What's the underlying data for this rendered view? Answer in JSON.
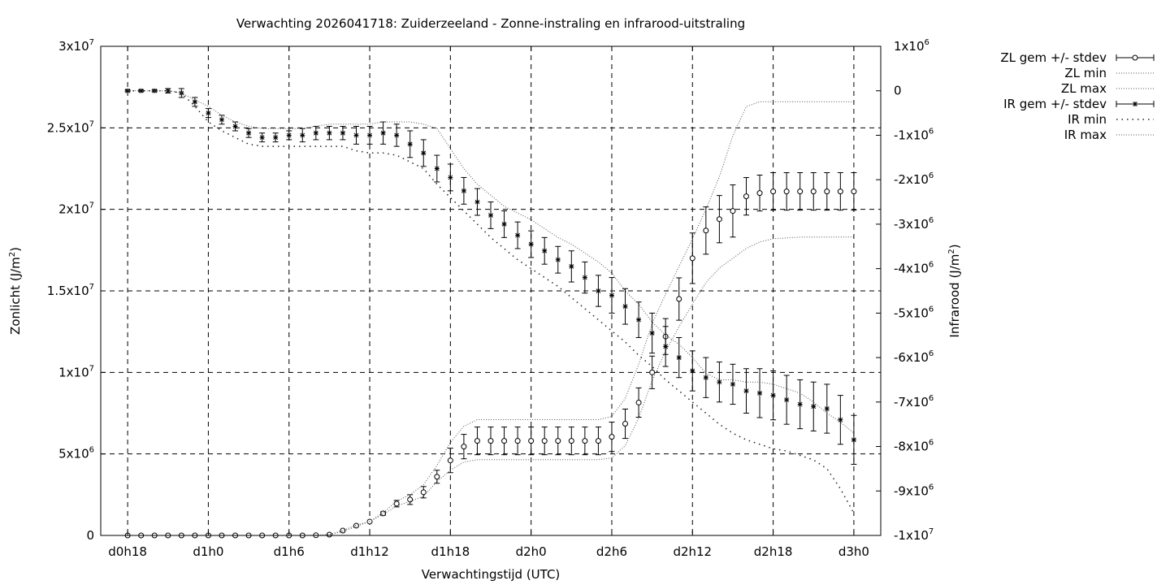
{
  "chart_data": {
    "type": "line",
    "title": "Verwachting 2026041718: Zuiderzeeland - Zonne-instraling en infrarood-uitstraling",
    "xlabel": "Verwachtingstijd (UTC)",
    "ylabel": {
      "base": "Zonlicht (J/m",
      "sup": "2",
      "end": ")"
    },
    "y2label": {
      "base": "Infrarood (J/m",
      "sup": "2",
      "end": ")"
    },
    "grid": true,
    "legend_position": "outside-right",
    "x_tick_labels": [
      "d0h18",
      "d1h0",
      "d1h6",
      "d1h12",
      "d1h18",
      "d2h0",
      "d2h6",
      "d2h12",
      "d2h18",
      "d3h0"
    ],
    "x_ticks_hours": [
      18,
      24,
      30,
      36,
      42,
      48,
      54,
      60,
      66,
      72
    ],
    "xlim_hours": [
      16,
      74
    ],
    "y_left_ticks": [
      {
        "value": 0,
        "base": "0",
        "exp": ""
      },
      {
        "value": 5000000,
        "base": "5x10",
        "exp": "6"
      },
      {
        "value": 10000000,
        "base": "1x10",
        "exp": "7"
      },
      {
        "value": 15000000,
        "base": "1.5x10",
        "exp": "7"
      },
      {
        "value": 20000000,
        "base": "2x10",
        "exp": "7"
      },
      {
        "value": 25000000,
        "base": "2.5x10",
        "exp": "7"
      },
      {
        "value": 30000000,
        "base": "3x10",
        "exp": "7"
      }
    ],
    "ylim_left": [
      0,
      30000000
    ],
    "y_right_ticks": [
      {
        "value": 1000000,
        "base": "1x10",
        "exp": "6"
      },
      {
        "value": 0,
        "base": "0",
        "exp": ""
      },
      {
        "value": -1000000,
        "base": "-1x10",
        "exp": "6"
      },
      {
        "value": -2000000,
        "base": "-2x10",
        "exp": "6"
      },
      {
        "value": -3000000,
        "base": "-3x10",
        "exp": "6"
      },
      {
        "value": -4000000,
        "base": "-4x10",
        "exp": "6"
      },
      {
        "value": -5000000,
        "base": "-5x10",
        "exp": "6"
      },
      {
        "value": -6000000,
        "base": "-6x10",
        "exp": "6"
      },
      {
        "value": -7000000,
        "base": "-7x10",
        "exp": "6"
      },
      {
        "value": -8000000,
        "base": "-8x10",
        "exp": "6"
      },
      {
        "value": -9000000,
        "base": "-9x10",
        "exp": "6"
      },
      {
        "value": -10000000,
        "base": "-1x10",
        "exp": "7"
      }
    ],
    "ylim_right": [
      -10000000,
      1000000
    ],
    "legend": [
      {
        "label": "ZL gem +/- stdev",
        "style": "errorbar-circle"
      },
      {
        "label": "ZL min",
        "style": "dotted-fine"
      },
      {
        "label": "ZL max",
        "style": "dotted-fine"
      },
      {
        "label": "IR gem +/- stdev",
        "style": "errorbar-star"
      },
      {
        "label": "IR min",
        "style": "dotted-coarse"
      },
      {
        "label": "IR max",
        "style": "dotted-fine"
      }
    ],
    "x_hours": [
      18,
      19,
      20,
      21,
      22,
      23,
      24,
      25,
      26,
      27,
      28,
      29,
      30,
      31,
      32,
      33,
      34,
      35,
      36,
      37,
      38,
      39,
      40,
      41,
      42,
      43,
      44,
      45,
      46,
      47,
      48,
      49,
      50,
      51,
      52,
      53,
      54,
      55,
      56,
      57,
      58,
      59,
      60,
      61,
      62,
      63,
      64,
      65,
      66,
      67,
      68,
      69,
      70,
      71,
      72
    ],
    "series": [
      {
        "name": "ZL gem +/- stdev",
        "axis": "left",
        "axis_units": "J/m2",
        "mean": [
          0,
          0,
          0,
          0,
          0,
          0,
          0,
          0,
          0,
          0,
          0,
          0,
          0,
          0,
          10000.0,
          50000.0,
          300000.0,
          600000.0,
          850000.0,
          1350000.0,
          1950000.0,
          2200000.0,
          2650000.0,
          3600000.0,
          4600000.0,
          5450000.0,
          5800000.0,
          5800000.0,
          5800000.0,
          5800000.0,
          5800000.0,
          5800000.0,
          5800000.0,
          5800000.0,
          5800000.0,
          5800000.0,
          6050000.0,
          6850000.0,
          8150000.0,
          10000000.0,
          12200000.0,
          14500000.0,
          17000000.0,
          18700000.0,
          19400000.0,
          19900000.0,
          20800000.0,
          21000000.0,
          21100000.0,
          21100000.0,
          21100000.0,
          21100000.0,
          21100000.0,
          21100000.0,
          21100000.0
        ],
        "stdev": [
          0,
          0,
          0,
          0,
          0,
          0,
          0,
          0,
          0,
          0,
          0,
          0,
          0,
          0,
          0,
          0,
          0,
          0,
          0,
          100000.0,
          200000.0,
          300000.0,
          350000.0,
          400000.0,
          750000.0,
          750000.0,
          850000.0,
          850000.0,
          850000.0,
          850000.0,
          850000.0,
          850000.0,
          850000.0,
          850000.0,
          850000.0,
          850000.0,
          900000.0,
          900000.0,
          900000.0,
          1000000.0,
          1100000.0,
          1300000.0,
          1550000.0,
          1450000.0,
          1450000.0,
          1600000.0,
          1150000.0,
          1100000.0,
          1150000.0,
          1150000.0,
          1150000.0,
          1150000.0,
          1150000.0,
          1150000.0,
          1150000.0
        ]
      },
      {
        "name": "ZL min",
        "axis": "left",
        "values": [
          0,
          0,
          0,
          0,
          0,
          0,
          0,
          0,
          0,
          0,
          0,
          0,
          0,
          0,
          10000.0,
          50000.0,
          250000.0,
          550000.0,
          850000.0,
          1300000.0,
          1800000.0,
          2100000.0,
          2400000.0,
          3300000.0,
          4000000.0,
          4500000.0,
          4650000.0,
          4650000.0,
          4650000.0,
          4650000.0,
          4650000.0,
          4650000.0,
          4650000.0,
          4650000.0,
          4650000.0,
          4650000.0,
          4750000.0,
          5500000.0,
          7200000.0,
          9500000.0,
          11300000.0,
          12800000.0,
          14200000.0,
          15500000.0,
          16400000.0,
          17000000.0,
          17600000.0,
          18000000.0,
          18200000.0,
          18250000.0,
          18300000.0,
          18300000.0,
          18300000.0,
          18300000.0,
          18300000.0
        ]
      },
      {
        "name": "ZL max",
        "axis": "left",
        "values": [
          0,
          0,
          0,
          0,
          0,
          0,
          0,
          0,
          0,
          0,
          0,
          0,
          0,
          0,
          10000.0,
          50000.0,
          300000.0,
          650000.0,
          850000.0,
          1400000.0,
          2100000.0,
          2500000.0,
          3100000.0,
          4300000.0,
          5700000.0,
          6700000.0,
          7100000.0,
          7100000.0,
          7100000.0,
          7100000.0,
          7100000.0,
          7100000.0,
          7100000.0,
          7100000.0,
          7100000.0,
          7100000.0,
          7300000.0,
          8400000.0,
          10500000.0,
          13000000.0,
          14800000.0,
          16500000.0,
          18200000.0,
          20000000.0,
          22000000.0,
          24500000.0,
          26300000.0,
          26600000.0,
          26600000.0,
          26600000.0,
          26600000.0,
          26600000.0,
          26600000.0,
          26600000.0,
          26600000.0
        ]
      },
      {
        "name": "IR gem +/- stdev",
        "axis": "right",
        "axis_units": "J/m2",
        "mean": [
          0,
          0,
          0,
          0,
          -50000.0,
          -250000.0,
          -500000.0,
          -650000.0,
          -800000.0,
          -950000.0,
          -1050000.0,
          -1050000.0,
          -1000000.0,
          -1000000.0,
          -950000.0,
          -950000.0,
          -950000.0,
          -1000000.0,
          -1000000.0,
          -950000.0,
          -1000000.0,
          -1200000.0,
          -1400000.0,
          -1750000.0,
          -1950000.0,
          -2250000.0,
          -2500000.0,
          -2800000.0,
          -3000000.0,
          -3250000.0,
          -3450000.0,
          -3600000.0,
          -3800000.0,
          -3950000.0,
          -4200000.0,
          -4500000.0,
          -4600000.0,
          -4850000.0,
          -5150000.0,
          -5450000.0,
          -5750000.0,
          -6000000.0,
          -6300000.0,
          -6450000.0,
          -6550000.0,
          -6600000.0,
          -6750000.0,
          -6800000.0,
          -6850000.0,
          -6950000.0,
          -7050000.0,
          -7100000.0,
          -7150000.0,
          -7400000.0,
          -7850000.0
        ],
        "stdev": [
          20000.0,
          20000.0,
          20000.0,
          50000.0,
          100000.0,
          100000.0,
          100000.0,
          100000.0,
          100000.0,
          100000.0,
          100000.0,
          100000.0,
          100000.0,
          150000.0,
          150000.0,
          150000.0,
          150000.0,
          200000.0,
          200000.0,
          250000.0,
          250000.0,
          300000.0,
          300000.0,
          300000.0,
          300000.0,
          300000.0,
          300000.0,
          300000.0,
          300000.0,
          300000.0,
          300000.0,
          300000.0,
          300000.0,
          350000.0,
          350000.0,
          350000.0,
          400000.0,
          400000.0,
          400000.0,
          450000.0,
          450000.0,
          450000.0,
          450000.0,
          450000.0,
          450000.0,
          450000.0,
          500000.0,
          550000.0,
          550000.0,
          550000.0,
          550000.0,
          550000.0,
          550000.0,
          550000.0,
          550000.0
        ]
      },
      {
        "name": "IR min",
        "axis": "right",
        "values": [
          0,
          0,
          0,
          0,
          -50000.0,
          -350000.0,
          -700000.0,
          -900000.0,
          -1050000.0,
          -1200000.0,
          -1250000.0,
          -1250000.0,
          -1250000.0,
          -1250000.0,
          -1250000.0,
          -1250000.0,
          -1250000.0,
          -1350000.0,
          -1400000.0,
          -1400000.0,
          -1450000.0,
          -1600000.0,
          -1750000.0,
          -2100000.0,
          -2400000.0,
          -2700000.0,
          -3000000.0,
          -3300000.0,
          -3550000.0,
          -3800000.0,
          -4000000.0,
          -4200000.0,
          -4400000.0,
          -4650000.0,
          -4900000.0,
          -5150000.0,
          -5400000.0,
          -5650000.0,
          -5950000.0,
          -6200000.0,
          -6500000.0,
          -6750000.0,
          -7000000.0,
          -7250000.0,
          -7500000.0,
          -7700000.0,
          -7850000.0,
          -7950000.0,
          -8050000.0,
          -8100000.0,
          -8200000.0,
          -8300000.0,
          -8500000.0,
          -8950000.0,
          -9500000.0
        ]
      },
      {
        "name": "IR max",
        "axis": "right",
        "values": [
          0,
          0,
          0,
          0,
          -50000.0,
          -200000.0,
          -350000.0,
          -550000.0,
          -700000.0,
          -800000.0,
          -850000.0,
          -850000.0,
          -850000.0,
          -850000.0,
          -800000.0,
          -750000.0,
          -750000.0,
          -750000.0,
          -750000.0,
          -700000.0,
          -700000.0,
          -700000.0,
          -750000.0,
          -850000.0,
          -1300000.0,
          -1750000.0,
          -2100000.0,
          -2350000.0,
          -2600000.0,
          -2750000.0,
          -2900000.0,
          -3100000.0,
          -3300000.0,
          -3450000.0,
          -3650000.0,
          -3850000.0,
          -4100000.0,
          -4500000.0,
          -4800000.0,
          -5200000.0,
          -5500000.0,
          -5700000.0,
          -6000000.0,
          -6350000.0,
          -6500000.0,
          -6500000.0,
          -6550000.0,
          -6550000.0,
          -6600000.0,
          -6700000.0,
          -6800000.0,
          -7000000.0,
          -7250000.0,
          -7450000.0,
          -7700000.0
        ]
      }
    ]
  }
}
